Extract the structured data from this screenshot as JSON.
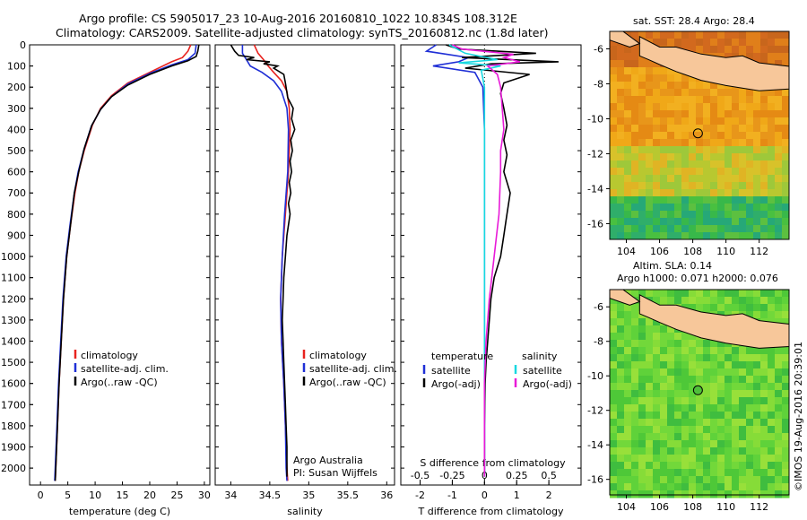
{
  "header": {
    "line1": "Argo profile: CS 5905017_23 10-Aug-2016 20160810_1022 10.834S 108.312E",
    "line2": "Climatology: CARS2009. Satellite-adjusted climatology: synTS_20160812.nc (1.8d later)"
  },
  "colors": {
    "clim": "#e8231f",
    "sat": "#1f2fd6",
    "argo": "#000000",
    "sat_cyan": "#18d8e0",
    "argo_mag": "#e81ad8"
  },
  "chart_data": [
    {
      "type": "line",
      "id": "temperature",
      "xlabel": "temperature (deg C)",
      "ylabel": "",
      "xlim": [
        -2,
        31
      ],
      "ylim": [
        2080,
        0
      ],
      "xticks": [
        0,
        5,
        10,
        15,
        20,
        25,
        30
      ],
      "yticks": [
        0,
        100,
        200,
        300,
        400,
        500,
        600,
        700,
        800,
        900,
        1000,
        1100,
        1200,
        1300,
        1400,
        1500,
        1600,
        1700,
        1800,
        1900,
        2000
      ],
      "legend": [
        "climatology",
        "satellite-adj. clim.",
        "Argo(..raw -QC)"
      ],
      "series": [
        {
          "name": "climatology",
          "color": "clim",
          "points": [
            [
              27.5,
              0
            ],
            [
              27,
              30
            ],
            [
              26,
              60
            ],
            [
              24,
              80
            ],
            [
              20,
              130
            ],
            [
              16,
              180
            ],
            [
              13,
              240
            ],
            [
              11,
              300
            ],
            [
              9.5,
              380
            ],
            [
              8,
              500
            ],
            [
              7,
              600
            ],
            [
              6.3,
              700
            ],
            [
              5.5,
              850
            ],
            [
              4.8,
              1000
            ],
            [
              4.2,
              1200
            ],
            [
              3.8,
              1400
            ],
            [
              3.4,
              1600
            ],
            [
              3.1,
              1800
            ],
            [
              2.8,
              2000
            ],
            [
              2.7,
              2060
            ]
          ]
        },
        {
          "name": "satellite-adj. clim.",
          "color": "sat",
          "points": [
            [
              28.5,
              0
            ],
            [
              28.3,
              40
            ],
            [
              27,
              70
            ],
            [
              24,
              95
            ],
            [
              20,
              135
            ],
            [
              16,
              185
            ],
            [
              13,
              245
            ],
            [
              11,
              305
            ],
            [
              9.3,
              385
            ],
            [
              7.9,
              500
            ],
            [
              6.9,
              600
            ],
            [
              6.2,
              700
            ],
            [
              5.4,
              850
            ],
            [
              4.7,
              1000
            ],
            [
              4.1,
              1200
            ],
            [
              3.7,
              1400
            ],
            [
              3.3,
              1600
            ],
            [
              3.0,
              1800
            ],
            [
              2.7,
              2000
            ],
            [
              2.6,
              2060
            ]
          ]
        },
        {
          "name": "Argo(..raw -QC)",
          "color": "argo",
          "points": [
            [
              29,
              0
            ],
            [
              28.8,
              30
            ],
            [
              28.5,
              55
            ],
            [
              27,
              75
            ],
            [
              24,
              100
            ],
            [
              20,
              140
            ],
            [
              16,
              190
            ],
            [
              13,
              245
            ],
            [
              11,
              305
            ],
            [
              9.4,
              380
            ],
            [
              8,
              490
            ],
            [
              7,
              600
            ],
            [
              6.2,
              700
            ],
            [
              5.5,
              850
            ],
            [
              4.8,
              1000
            ],
            [
              4.2,
              1200
            ],
            [
              3.8,
              1400
            ],
            [
              3.4,
              1600
            ],
            [
              3.1,
              1800
            ],
            [
              2.8,
              2000
            ],
            [
              2.7,
              2060
            ]
          ]
        }
      ]
    },
    {
      "type": "line",
      "id": "salinity",
      "xlabel": "salinity",
      "xlim": [
        33.8,
        36.1
      ],
      "ylim": [
        2080,
        0
      ],
      "xticks": [
        34,
        34.5,
        35,
        35.5,
        36
      ],
      "legend": [
        "climatology",
        "satellite-adj. clim.",
        "Argo(..raw -QC)"
      ],
      "annotation": [
        "Argo Australia",
        "PI: Susan Wijffels"
      ],
      "series": [
        {
          "name": "climatology",
          "color": "clim",
          "points": [
            [
              34.3,
              0
            ],
            [
              34.35,
              40
            ],
            [
              34.42,
              70
            ],
            [
              34.48,
              100
            ],
            [
              34.55,
              130
            ],
            [
              34.65,
              170
            ],
            [
              34.72,
              220
            ],
            [
              34.75,
              300
            ],
            [
              34.76,
              400
            ],
            [
              34.74,
              600
            ],
            [
              34.7,
              800
            ],
            [
              34.66,
              1000
            ],
            [
              34.64,
              1200
            ],
            [
              34.65,
              1400
            ],
            [
              34.68,
              1600
            ],
            [
              34.7,
              1800
            ],
            [
              34.72,
              2000
            ],
            [
              34.73,
              2060
            ]
          ]
        },
        {
          "name": "satellite-adj. clim.",
          "color": "sat",
          "points": [
            [
              34.15,
              0
            ],
            [
              34.15,
              40
            ],
            [
              34.2,
              70
            ],
            [
              34.25,
              100
            ],
            [
              34.4,
              130
            ],
            [
              34.55,
              170
            ],
            [
              34.65,
              220
            ],
            [
              34.72,
              300
            ],
            [
              34.74,
              400
            ],
            [
              34.73,
              600
            ],
            [
              34.69,
              800
            ],
            [
              34.66,
              1000
            ],
            [
              34.64,
              1200
            ],
            [
              34.65,
              1400
            ],
            [
              34.68,
              1600
            ],
            [
              34.7,
              1800
            ],
            [
              34.71,
              2000
            ],
            [
              34.72,
              2060
            ]
          ]
        },
        {
          "name": "Argo(..raw -QC)",
          "color": "argo",
          "points": [
            [
              34.0,
              0
            ],
            [
              34.05,
              30
            ],
            [
              34.1,
              50
            ],
            [
              34.3,
              60
            ],
            [
              34.2,
              70
            ],
            [
              34.5,
              80
            ],
            [
              34.42,
              90
            ],
            [
              34.6,
              100
            ],
            [
              34.55,
              110
            ],
            [
              34.68,
              140
            ],
            [
              34.7,
              180
            ],
            [
              34.73,
              250
            ],
            [
              34.8,
              300
            ],
            [
              34.78,
              350
            ],
            [
              34.82,
              400
            ],
            [
              34.77,
              450
            ],
            [
              34.79,
              500
            ],
            [
              34.76,
              550
            ],
            [
              34.78,
              600
            ],
            [
              34.75,
              650
            ],
            [
              34.77,
              700
            ],
            [
              34.74,
              750
            ],
            [
              34.76,
              800
            ],
            [
              34.72,
              900
            ],
            [
              34.7,
              1000
            ],
            [
              34.68,
              1100
            ],
            [
              34.67,
              1200
            ],
            [
              34.66,
              1300
            ],
            [
              34.67,
              1400
            ],
            [
              34.68,
              1500
            ],
            [
              34.69,
              1600
            ],
            [
              34.7,
              1700
            ],
            [
              34.71,
              1800
            ],
            [
              34.72,
              1900
            ],
            [
              34.72,
              2000
            ],
            [
              34.72,
              2040
            ]
          ]
        }
      ]
    },
    {
      "type": "line",
      "id": "difference",
      "xlabel": "T difference from climatology",
      "xlabel_top": "S difference from climatology",
      "xlim": [
        -2.6,
        3
      ],
      "ylim": [
        2080,
        0
      ],
      "xticks": [
        -2,
        -1,
        0,
        1,
        2
      ],
      "xticks_top": [
        {
          "v": -0.5,
          "label": "-0.5"
        },
        {
          "v": -0.25,
          "label": "-0.25"
        },
        {
          "v": 0,
          "label": "0"
        },
        {
          "v": 0.25,
          "label": "0.25"
        },
        {
          "v": 0.5,
          "label": "0.5"
        }
      ],
      "legend_headers": [
        "temperature",
        "salinity"
      ],
      "legend": [
        "satellite",
        "Argo(-adj)",
        "satellite",
        "Argo(-adj)"
      ],
      "series": [
        {
          "name": "T satellite",
          "color": "sat",
          "points": [
            [
              -1.5,
              0
            ],
            [
              -1.8,
              30
            ],
            [
              -0.5,
              60
            ],
            [
              -0.8,
              80
            ],
            [
              -1.6,
              100
            ],
            [
              -0.3,
              130
            ],
            [
              -0.05,
              200
            ],
            [
              0,
              400
            ],
            [
              0,
              800
            ],
            [
              0,
              1200
            ],
            [
              0,
              1600
            ],
            [
              0,
              2040
            ]
          ]
        },
        {
          "name": "T Argo(-adj)",
          "color": "argo",
          "points": [
            [
              -1.2,
              0
            ],
            [
              -0.8,
              20
            ],
            [
              1.6,
              40
            ],
            [
              -0.7,
              60
            ],
            [
              2.3,
              80
            ],
            [
              0.2,
              90
            ],
            [
              -0.6,
              110
            ],
            [
              1.4,
              140
            ],
            [
              0.6,
              180
            ],
            [
              0.5,
              230
            ],
            [
              0.6,
              300
            ],
            [
              0.7,
              380
            ],
            [
              0.6,
              450
            ],
            [
              0.7,
              520
            ],
            [
              0.6,
              600
            ],
            [
              0.8,
              700
            ],
            [
              0.7,
              800
            ],
            [
              0.6,
              900
            ],
            [
              0.5,
              1000
            ],
            [
              0.3,
              1100
            ],
            [
              0.2,
              1200
            ],
            [
              0.15,
              1300
            ],
            [
              0.1,
              1400
            ],
            [
              0.05,
              1500
            ],
            [
              0.02,
              1600
            ],
            [
              0,
              1800
            ],
            [
              0,
              2040
            ]
          ]
        },
        {
          "name": "S satellite",
          "color": "sat_cyan",
          "points": [
            [
              -1.1,
              0
            ],
            [
              -0.6,
              40
            ],
            [
              0.4,
              70
            ],
            [
              -0.8,
              85
            ],
            [
              0.5,
              100
            ],
            [
              -0.1,
              120
            ],
            [
              0,
              200
            ],
            [
              0,
              400
            ],
            [
              0,
              800
            ],
            [
              0,
              1200
            ],
            [
              0,
              1600
            ],
            [
              0,
              2040
            ]
          ]
        },
        {
          "name": "S Argo(-adj)",
          "color": "argo_mag",
          "points": [
            [
              -1.0,
              0
            ],
            [
              -0.7,
              20
            ],
            [
              0.9,
              45
            ],
            [
              0.6,
              60
            ],
            [
              1.1,
              80
            ],
            [
              0.1,
              100
            ],
            [
              0.4,
              140
            ],
            [
              0.5,
              200
            ],
            [
              0.55,
              300
            ],
            [
              0.6,
              400
            ],
            [
              0.5,
              500
            ],
            [
              0.5,
              600
            ],
            [
              0.45,
              800
            ],
            [
              0.3,
              1000
            ],
            [
              0.15,
              1200
            ],
            [
              0.05,
              1400
            ],
            [
              0,
              1600
            ],
            [
              0,
              2040
            ]
          ]
        }
      ]
    },
    {
      "type": "heatmap",
      "id": "sst_map",
      "title": "sat. SST: 28.4  Argo: 28.4",
      "xticks": [
        104,
        106,
        108,
        110,
        112
      ],
      "yticks": [
        -6,
        -8,
        -10,
        -12,
        -14,
        -16
      ],
      "xlim": [
        103,
        113.8
      ],
      "ylim": [
        -16.9,
        -5
      ],
      "marker": {
        "lon": 108.312,
        "lat": -10.834
      }
    },
    {
      "type": "heatmap",
      "id": "sla_map",
      "title": "Altim. SLA: 0.14",
      "subtitle": "Argo h1000: 0.071 h2000: 0.076",
      "xticks": [
        104,
        106,
        108,
        110,
        112
      ],
      "yticks": [
        -6,
        -8,
        -10,
        -12,
        -14,
        -16
      ],
      "xlim": [
        103,
        113.8
      ],
      "ylim": [
        -16.9,
        -5
      ],
      "marker": {
        "lon": 108.312,
        "lat": -10.834
      }
    }
  ],
  "footer": {
    "stamp": "©IMOS 19-Aug-2016 20:39:01"
  }
}
